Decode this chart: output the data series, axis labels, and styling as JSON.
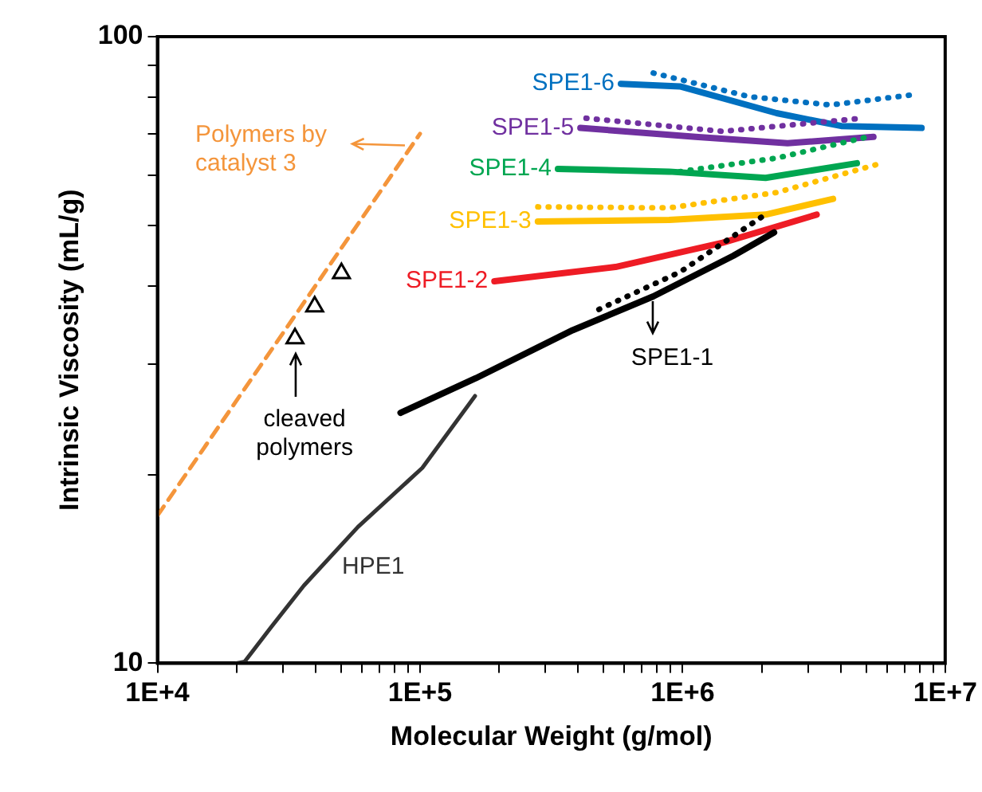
{
  "chart_data": {
    "type": "line",
    "xlabel": "Molecular Weight (g/mol)",
    "ylabel": "Intrinsic Viscosity (mL/g)",
    "log": "xy",
    "xlim": [
      10000,
      10000000
    ],
    "ylim": [
      10,
      100
    ],
    "xticks": [
      {
        "value": 10000,
        "label": "1E+4"
      },
      {
        "value": 20000,
        "label": null
      },
      {
        "value": 30000,
        "label": null
      },
      {
        "value": 40000,
        "label": null
      },
      {
        "value": 50000,
        "label": null
      },
      {
        "value": 60000,
        "label": null
      },
      {
        "value": 70000,
        "label": null
      },
      {
        "value": 80000,
        "label": null
      },
      {
        "value": 90000,
        "label": null
      },
      {
        "value": 100000,
        "label": "1E+5"
      },
      {
        "value": 200000,
        "label": null
      },
      {
        "value": 300000,
        "label": null
      },
      {
        "value": 400000,
        "label": null
      },
      {
        "value": 500000,
        "label": null
      },
      {
        "value": 600000,
        "label": null
      },
      {
        "value": 700000,
        "label": null
      },
      {
        "value": 800000,
        "label": null
      },
      {
        "value": 900000,
        "label": null
      },
      {
        "value": 1000000,
        "label": "1E+6"
      },
      {
        "value": 2000000,
        "label": null
      },
      {
        "value": 3000000,
        "label": null
      },
      {
        "value": 4000000,
        "label": null
      },
      {
        "value": 5000000,
        "label": null
      },
      {
        "value": 6000000,
        "label": null
      },
      {
        "value": 7000000,
        "label": null
      },
      {
        "value": 8000000,
        "label": null
      },
      {
        "value": 9000000,
        "label": null
      },
      {
        "value": 10000000,
        "label": "1E+7"
      }
    ],
    "yticks": [
      10,
      {
        "value": 20,
        "label": null
      },
      {
        "value": 30,
        "label": null
      },
      {
        "value": 40,
        "label": null
      },
      {
        "value": 50,
        "label": null
      },
      {
        "value": 60,
        "label": null
      },
      {
        "value": 70,
        "label": null
      },
      {
        "value": 80,
        "label": null
      },
      {
        "value": 90,
        "label": null
      },
      100
    ],
    "series": [
      {
        "name": "Polymers by catalyst 3",
        "color": "#f4953b",
        "line_style": "dashed",
        "marker": "none",
        "x": [
          10000,
          100000
        ],
        "values": [
          17.2,
          70
        ]
      },
      {
        "type": "scatter",
        "color": "#000000",
        "marker": "triangle",
        "x": [
          33400,
          39700,
          50200
        ],
        "values": [
          33,
          37.1,
          41.9
        ]
      },
      {
        "color": "#333333",
        "line_style": "solid",
        "marker": "none",
        "x": [
          20000,
          21500,
          27000,
          36100,
          58000,
          102000,
          162000
        ],
        "values": [
          10,
          10.06,
          11.4,
          13.3,
          16.5,
          20.5,
          26.7
        ]
      },
      {
        "color": "#000000",
        "line_style": "solid",
        "marker": "none",
        "x": [
          84300,
          163000,
          381000,
          773000,
          1560000,
          2230000
        ],
        "values": [
          25.1,
          28.5,
          34,
          38.5,
          44.7,
          48.7
        ]
      },
      {
        "color": "#000000",
        "line_style": "dotted",
        "marker": "none",
        "x": [
          480000,
          977000,
          2120000
        ],
        "values": [
          36.7,
          42.1,
          52.4
        ]
      },
      {
        "name": "SPE1-2",
        "color": "#ee1c25",
        "line_style": "solid",
        "marker": "none",
        "x": [
          192000,
          555000,
          1420000,
          3240000
        ],
        "values": [
          40.7,
          42.9,
          46.9,
          52
        ]
      },
      {
        "name": "SPE1-3",
        "color": "#ffc000",
        "line_style": "solid",
        "marker": "none",
        "x": [
          281000,
          889000,
          2070000,
          3740000
        ],
        "values": [
          50.7,
          51,
          52,
          55.1
        ]
      },
      {
        "color": "#ffc000",
        "line_style": "dotted",
        "marker": "none",
        "x": [
          281000,
          889000,
          2280000,
          5710000
        ],
        "values": [
          53.5,
          53.3,
          56.4,
          62.8
        ]
      },
      {
        "name": "SPE1-4",
        "color": "#00a651",
        "line_style": "solid",
        "marker": "none",
        "x": [
          335000,
          889000,
          2070000,
          4610000
        ],
        "values": [
          61.5,
          60.9,
          59.5,
          62.8
        ]
      },
      {
        "color": "#00a651",
        "line_style": "dotted",
        "marker": "none",
        "x": [
          977000,
          2280000,
          5080000
        ],
        "values": [
          60.9,
          64,
          69.2
        ]
      },
      {
        "name": "SPE1-5",
        "color": "#7030a0",
        "line_style": "solid",
        "marker": "none",
        "x": [
          408000,
          1120000,
          2510000,
          5330000
        ],
        "values": [
          71.5,
          69.2,
          67.6,
          69.2
        ]
      },
      {
        "color": "#7030a0",
        "line_style": "dotted",
        "marker": "none",
        "x": [
          429000,
          1420000,
          4840000
        ],
        "values": [
          74.1,
          70.6,
          74.1
        ]
      },
      {
        "name": "SPE1-6",
        "color": "#0070c0",
        "line_style": "solid",
        "marker": "none",
        "x": [
          582000,
          977000,
          2280000,
          4020000,
          8130000
        ],
        "values": [
          84.1,
          83.3,
          75.5,
          72,
          71.5
        ]
      },
      {
        "color": "#0070c0",
        "line_style": "dotted",
        "marker": "none",
        "x": [
          773000,
          1800000,
          3660000,
          7770000
        ],
        "values": [
          87.5,
          80.2,
          77.8,
          80.9
        ]
      }
    ],
    "annotations": [
      {
        "text": "cleaved polymers",
        "x": 33400,
        "y": 33
      },
      {
        "text": "SPE1-1",
        "x": 773000,
        "y": 38.5
      },
      {
        "text": "HPE1",
        "x": 58000,
        "y": 16.5
      }
    ]
  }
}
